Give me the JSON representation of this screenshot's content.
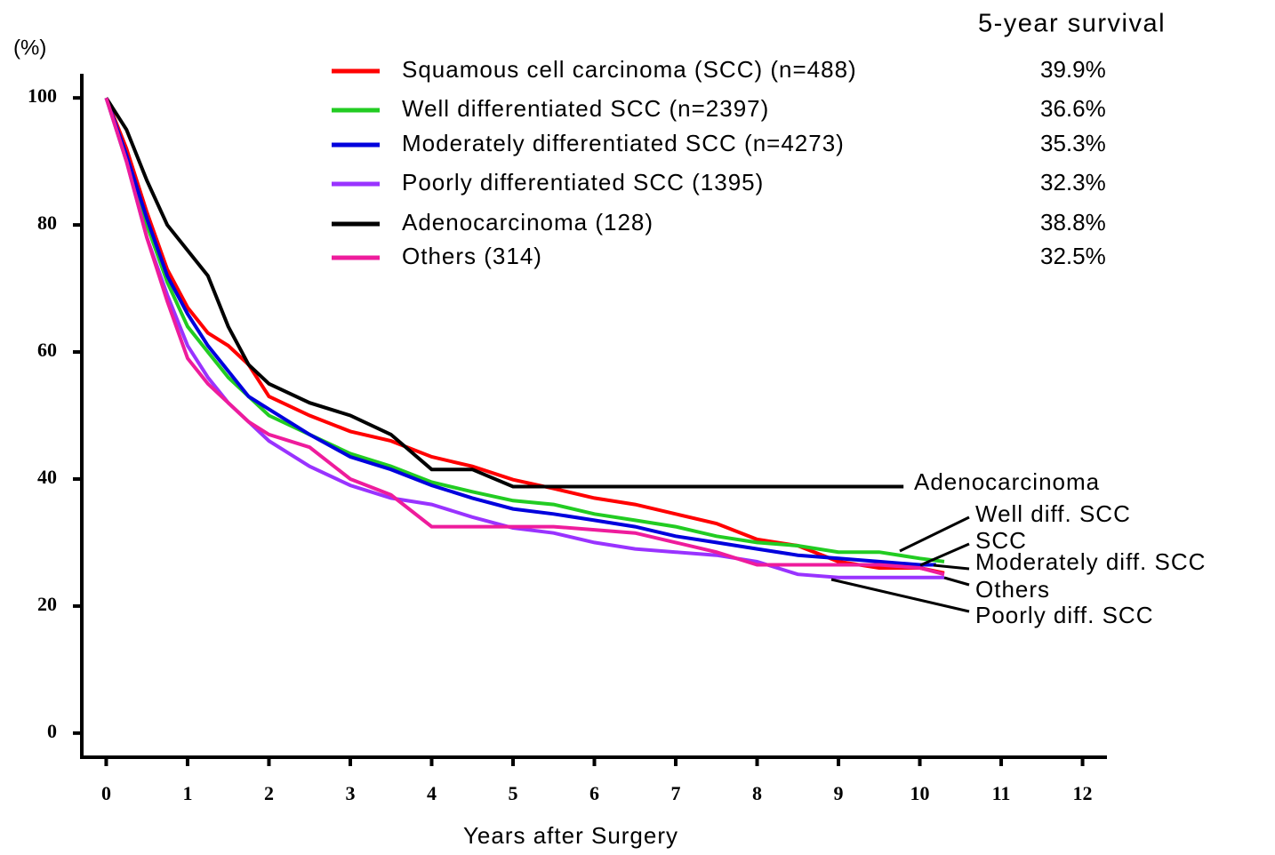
{
  "chart_data": {
    "type": "line",
    "y_label": "(%)",
    "x_label": "Years after Surgery",
    "legend_title": "5-year survival",
    "xlim": [
      -0.3,
      12.3
    ],
    "ylim": [
      -3.8,
      103.8
    ],
    "xticks": [
      0,
      1,
      2,
      3,
      4,
      5,
      6,
      7,
      8,
      9,
      10,
      11,
      12
    ],
    "yticks": [
      0,
      20,
      40,
      60,
      80,
      100
    ],
    "series": [
      {
        "name": "Squamous cell carcinoma (SCC) (n=488)",
        "color": "#ff0000",
        "five_year_survival": 39.9,
        "five_year_survival_label": "39.9%",
        "end_label": "SCC",
        "x": [
          0,
          0.25,
          0.5,
          0.75,
          1,
          1.25,
          1.5,
          1.75,
          2,
          2.5,
          3,
          3.5,
          4,
          4.5,
          5,
          5.5,
          6,
          6.5,
          7,
          7.5,
          8,
          8.5,
          9,
          9.5,
          10,
          10.3
        ],
        "values": [
          100,
          92,
          82,
          73,
          67,
          63,
          61,
          58,
          53,
          50,
          47.5,
          46,
          43.5,
          42,
          39.9,
          38.5,
          37,
          36,
          34.5,
          33,
          30.5,
          29.5,
          27,
          26,
          26,
          25.2
        ]
      },
      {
        "name": "Well differentiated SCC (n=2397)",
        "color": "#22cc22",
        "five_year_survival": 36.6,
        "five_year_survival_label": "36.6%",
        "end_label": "Well diff. SCC",
        "x": [
          0,
          0.25,
          0.5,
          0.75,
          1,
          1.25,
          1.5,
          1.75,
          2,
          2.5,
          3,
          3.5,
          4,
          4.5,
          5,
          5.5,
          6,
          6.5,
          7,
          7.5,
          8,
          8.5,
          9,
          9.5,
          10,
          10.3
        ],
        "values": [
          100,
          90,
          80,
          71,
          64,
          60,
          56,
          53,
          50,
          47,
          44,
          42,
          39.5,
          38,
          36.6,
          36,
          34.5,
          33.5,
          32.5,
          31,
          30,
          29.5,
          28.5,
          28.5,
          27.5,
          27
        ]
      },
      {
        "name": "Moderately differentiated SCC (n=4273)",
        "color": "#0000dd",
        "five_year_survival": 35.3,
        "five_year_survival_label": "35.3%",
        "end_label": "Moderately diff. SCC",
        "x": [
          0,
          0.25,
          0.5,
          0.75,
          1,
          1.25,
          1.5,
          1.75,
          2,
          2.5,
          3,
          3.5,
          4,
          4.5,
          5,
          5.5,
          6,
          6.5,
          7,
          7.5,
          8,
          8.5,
          9,
          9.5,
          10,
          10.2
        ],
        "values": [
          100,
          91,
          81,
          72,
          66,
          61,
          57,
          53,
          51,
          47,
          43.5,
          41.5,
          39,
          37,
          35.3,
          34.5,
          33.5,
          32.5,
          31,
          30,
          29,
          28,
          27.5,
          27,
          26.5,
          26.5
        ]
      },
      {
        "name": "Poorly differentiated SCC (1395)",
        "color": "#9933ff",
        "five_year_survival": 32.3,
        "five_year_survival_label": "32.3%",
        "end_label": "Poorly diff. SCC",
        "x": [
          0,
          0.25,
          0.5,
          0.75,
          1,
          1.25,
          1.5,
          1.75,
          2,
          2.5,
          3,
          3.5,
          4,
          4.5,
          5,
          5.5,
          6,
          6.5,
          7,
          7.5,
          8,
          8.5,
          9,
          9.5,
          10,
          10.3
        ],
        "values": [
          100,
          90,
          78,
          69,
          61,
          56,
          52,
          49,
          46,
          42,
          39,
          37,
          36,
          34,
          32.3,
          31.5,
          30,
          29,
          28.5,
          28,
          27,
          25,
          24.5,
          24.5,
          24.5,
          24.5
        ]
      },
      {
        "name": "Adenocarcinoma (128)",
        "color": "#000000",
        "five_year_survival": 38.8,
        "five_year_survival_label": "38.8%",
        "end_label": "Adenocarcinoma",
        "x": [
          0,
          0.25,
          0.5,
          0.75,
          1,
          1.25,
          1.5,
          1.75,
          2,
          2.5,
          3,
          3.5,
          4,
          4.5,
          5,
          5.5,
          6,
          7,
          8,
          9,
          9.8
        ],
        "values": [
          100,
          95,
          87,
          80,
          76,
          72,
          64,
          58,
          55,
          52,
          50,
          47,
          41.5,
          41.5,
          38.8,
          38.8,
          38.8,
          38.8,
          38.8,
          38.8,
          38.8
        ]
      },
      {
        "name": "Others (314)",
        "color": "#ee1c9c",
        "five_year_survival": 32.5,
        "five_year_survival_label": "32.5%",
        "end_label": "Others",
        "x": [
          0,
          0.25,
          0.5,
          0.75,
          1,
          1.25,
          1.5,
          1.75,
          2,
          2.5,
          3,
          3.5,
          4,
          4.5,
          5,
          5.5,
          6,
          6.5,
          7,
          7.5,
          8,
          8.5,
          9,
          9.5,
          10,
          10.3
        ],
        "values": [
          100,
          90,
          78,
          68,
          59,
          55,
          52,
          49,
          47,
          45,
          40,
          37.5,
          32.5,
          32.5,
          32.5,
          32.5,
          32,
          31.5,
          30,
          28.5,
          26.5,
          26.5,
          26.5,
          26.5,
          26,
          25
        ]
      }
    ]
  }
}
